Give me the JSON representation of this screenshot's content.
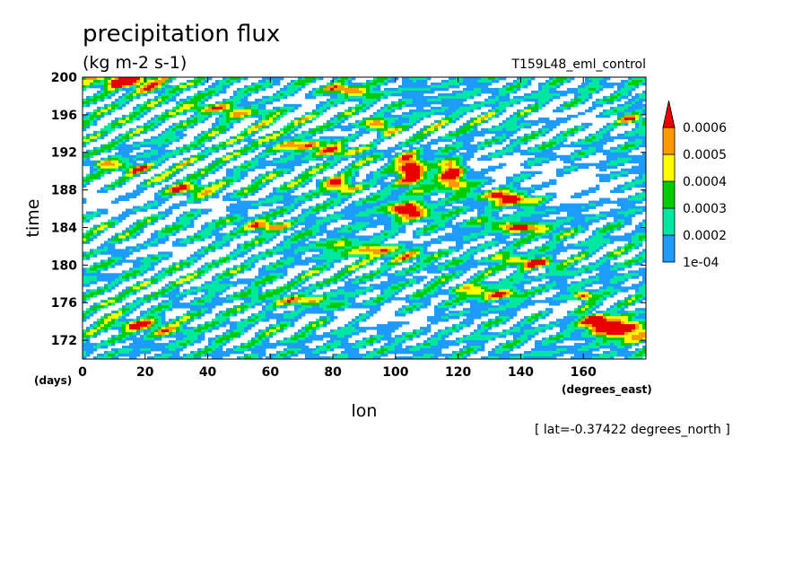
{
  "chart_data": {
    "type": "heatmap",
    "title": "precipitation flux",
    "units": "(kg m-2 s-1)",
    "experiment": "T159L48_eml_control",
    "xlabel": "lon",
    "ylabel": "time",
    "x_units": "(degrees_east)",
    "y_units": "(days)",
    "subtitle": "[ lat=-0.37422 degrees_north ]",
    "xlim": [
      0,
      180
    ],
    "ylim": [
      170,
      200
    ],
    "x_ticks": [
      "0",
      "20",
      "40",
      "60",
      "80",
      "100",
      "120",
      "140",
      "160"
    ],
    "x_tick_values": [
      0,
      20,
      40,
      60,
      80,
      100,
      120,
      140,
      160
    ],
    "y_ticks": [
      "172",
      "176",
      "180",
      "184",
      "188",
      "192",
      "196",
      "200"
    ],
    "y_tick_values": [
      172,
      176,
      180,
      184,
      188,
      192,
      196,
      200
    ],
    "colorbar": {
      "labels": [
        "1e-04",
        "0.0002",
        "0.0003",
        "0.0004",
        "0.0005",
        "0.0006"
      ],
      "thresholds": [
        0.0001,
        0.0002,
        0.0003,
        0.0004,
        0.0005,
        0.0006
      ],
      "colors": [
        "#ffffff",
        "#1e9bff",
        "#00e8a0",
        "#00cc00",
        "#ffff00",
        "#ff9900",
        "#e60000"
      ]
    },
    "field": {
      "background": 0.00016,
      "features": [
        {
          "lon": 14,
          "time": 199.6,
          "amp": 0.00062,
          "sl": 8,
          "st": 0.6
        },
        {
          "lon": 105,
          "time": 190.0,
          "amp": 0.00068,
          "sl": 3,
          "st": 1.3
        },
        {
          "lon": 118,
          "time": 189.6,
          "amp": 0.00066,
          "sl": 3,
          "st": 1.1
        },
        {
          "lon": 104,
          "time": 185.8,
          "amp": 0.00062,
          "sl": 5,
          "st": 0.6
        },
        {
          "lon": 136,
          "time": 187.1,
          "amp": 0.00058,
          "sl": 6,
          "st": 0.5
        },
        {
          "lon": 172,
          "time": 173.2,
          "amp": 0.00064,
          "sl": 6,
          "st": 0.8
        },
        {
          "lon": 163,
          "time": 174.0,
          "amp": 0.00056,
          "sl": 3,
          "st": 0.6
        },
        {
          "lon": 160,
          "time": 176.7,
          "amp": 0.0005,
          "sl": 2,
          "st": 0.4
        },
        {
          "lon": 85,
          "time": 198.6,
          "amp": 0.0005,
          "sl": 5,
          "st": 0.4
        },
        {
          "lon": 95,
          "time": 194.8,
          "amp": 0.00048,
          "sl": 3,
          "st": 0.5
        },
        {
          "lon": 82,
          "time": 188.5,
          "amp": 0.00048,
          "sl": 4,
          "st": 0.5
        },
        {
          "lon": 140,
          "time": 184.0,
          "amp": 0.00046,
          "sl": 8,
          "st": 0.4
        },
        {
          "lon": 143,
          "time": 180.3,
          "amp": 0.00046,
          "sl": 7,
          "st": 0.4
        },
        {
          "lon": 34,
          "time": 188.0,
          "amp": 0.00044,
          "sl": 6,
          "st": 0.5
        },
        {
          "lon": 58,
          "time": 184.2,
          "amp": 0.00042,
          "sl": 6,
          "st": 0.4
        },
        {
          "lon": 20,
          "time": 173.5,
          "amp": 0.00042,
          "sl": 8,
          "st": 0.5
        },
        {
          "lon": 75,
          "time": 192.5,
          "amp": 0.0004,
          "sl": 12,
          "st": 0.5
        },
        {
          "lon": 130,
          "time": 177.0,
          "amp": 0.0004,
          "sl": 8,
          "st": 0.5
        },
        {
          "lon": 95,
          "time": 181.5,
          "amp": 0.00036,
          "sl": 12,
          "st": 0.6
        },
        {
          "lon": 45,
          "time": 196.5,
          "amp": 0.00036,
          "sl": 10,
          "st": 0.4
        },
        {
          "lon": 175,
          "time": 195.6,
          "amp": 0.00048,
          "sl": 3,
          "st": 0.4
        },
        {
          "lon": 12,
          "time": 190.5,
          "amp": 0.0004,
          "sl": 6,
          "st": 0.4
        },
        {
          "lon": 70,
          "time": 176.2,
          "amp": 0.00036,
          "sl": 10,
          "st": 0.4
        },
        {
          "lon": 8,
          "time": 187.5,
          "amp": -0.00018,
          "sl": 10,
          "st": 1.5
        },
        {
          "lon": 40,
          "time": 186.5,
          "amp": -0.00012,
          "sl": 8,
          "st": 0.8
        },
        {
          "lon": 158,
          "time": 188.5,
          "amp": -0.00016,
          "sl": 10,
          "st": 1.5
        },
        {
          "lon": 95,
          "time": 193.2,
          "amp": -0.00016,
          "sl": 8,
          "st": 0.8
        },
        {
          "lon": 160,
          "time": 195.5,
          "amp": -0.00016,
          "sl": 10,
          "st": 0.8
        },
        {
          "lon": 130,
          "time": 190.5,
          "amp": -0.00015,
          "sl": 8,
          "st": 0.8
        },
        {
          "lon": 95,
          "time": 174.5,
          "amp": -0.00016,
          "sl": 15,
          "st": 0.8
        },
        {
          "lon": 150,
          "time": 175.5,
          "amp": -0.00014,
          "sl": 8,
          "st": 0.8
        },
        {
          "lon": 30,
          "time": 181.5,
          "amp": -0.00012,
          "sl": 15,
          "st": 0.6
        },
        {
          "lon": 110,
          "time": 182.2,
          "amp": -0.00012,
          "sl": 12,
          "st": 0.6
        },
        {
          "lon": 70,
          "time": 197.2,
          "amp": -0.0001,
          "sl": 8,
          "st": 0.6
        }
      ]
    }
  }
}
